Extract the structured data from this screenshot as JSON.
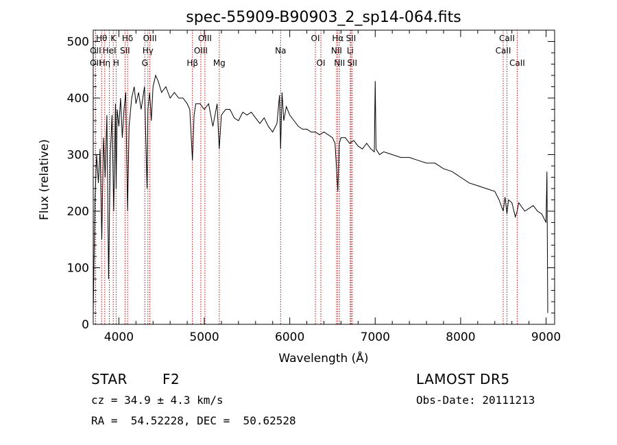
{
  "chart_data": {
    "type": "line",
    "title": "spec-55909-B90903_2_sp14-064.fits",
    "xlabel": "Wavelength (Å)",
    "ylabel": "Flux (relative)",
    "xlim": [
      3700,
      9100
    ],
    "ylim": [
      0,
      520
    ],
    "xticks": [
      4000,
      5000,
      6000,
      7000,
      8000,
      9000
    ],
    "yticks": [
      0,
      100,
      200,
      300,
      400,
      500
    ],
    "series": [
      {
        "color": "#000000",
        "x": [
          3700,
          3720,
          3740,
          3760,
          3780,
          3800,
          3820,
          3840,
          3860,
          3880,
          3900,
          3920,
          3940,
          3960,
          3968,
          3980,
          4000,
          4020,
          4040,
          4060,
          4080,
          4102,
          4120,
          4150,
          4180,
          4200,
          4230,
          4260,
          4300,
          4330,
          4340,
          4360,
          4380,
          4400,
          4430,
          4460,
          4500,
          4550,
          4600,
          4650,
          4700,
          4750,
          4800,
          4830,
          4861,
          4880,
          4900,
          4950,
          5000,
          5050,
          5100,
          5150,
          5175,
          5200,
          5250,
          5300,
          5350,
          5400,
          5450,
          5500,
          5550,
          5600,
          5650,
          5700,
          5750,
          5800,
          5850,
          5880,
          5893,
          5910,
          5930,
          5960,
          6000,
          6050,
          6100,
          6150,
          6200,
          6250,
          6300,
          6350,
          6400,
          6450,
          6500,
          6530,
          6563,
          6580,
          6600,
          6650,
          6700,
          6750,
          6800,
          6850,
          6900,
          6950,
          6990,
          7000,
          7010,
          7050,
          7100,
          7200,
          7300,
          7400,
          7500,
          7600,
          7700,
          7800,
          7900,
          8000,
          8100,
          8200,
          8300,
          8400,
          8450,
          8498,
          8520,
          8542,
          8560,
          8600,
          8640,
          8662,
          8680,
          8750,
          8800,
          8850,
          8900,
          8950,
          9000,
          9010,
          9020
        ],
        "y": [
          20,
          220,
          300,
          250,
          310,
          150,
          330,
          260,
          370,
          80,
          300,
          370,
          200,
          390,
          240,
          380,
          350,
          400,
          330,
          380,
          410,
          200,
          350,
          400,
          420,
          390,
          410,
          380,
          420,
          240,
          380,
          410,
          360,
          420,
          440,
          430,
          410,
          420,
          400,
          410,
          400,
          400,
          390,
          380,
          290,
          370,
          390,
          390,
          380,
          390,
          350,
          390,
          310,
          370,
          380,
          380,
          365,
          360,
          375,
          370,
          375,
          365,
          355,
          365,
          350,
          340,
          355,
          405,
          310,
          410,
          360,
          385,
          370,
          360,
          350,
          345,
          345,
          340,
          340,
          335,
          340,
          335,
          330,
          320,
          235,
          320,
          330,
          330,
          320,
          325,
          315,
          310,
          320,
          310,
          305,
          430,
          310,
          300,
          305,
          300,
          295,
          295,
          290,
          285,
          285,
          275,
          270,
          260,
          250,
          245,
          240,
          235,
          220,
          200,
          225,
          195,
          220,
          215,
          190,
          200,
          215,
          200,
          205,
          210,
          200,
          195,
          180,
          270,
          20
        ]
      }
    ],
    "spectral_lines": [
      {
        "label": "Hθ",
        "x": 3798,
        "row": 0
      },
      {
        "label": "K",
        "x": 3934,
        "row": 0
      },
      {
        "label": "Hδ",
        "x": 4102,
        "row": 0
      },
      {
        "label": "OIII",
        "x": 4363,
        "row": 0
      },
      {
        "label": "OIII",
        "x": 5007,
        "row": 0
      },
      {
        "label": "OI",
        "x": 6300,
        "row": 0
      },
      {
        "label": "Hα",
        "x": 6563,
        "row": 0
      },
      {
        "label": "SII",
        "x": 6717,
        "row": 0
      },
      {
        "label": "CaII",
        "x": 8542,
        "row": 0
      },
      {
        "label": "OII",
        "x": 3727,
        "row": 1
      },
      {
        "label": "HeI",
        "x": 3889,
        "row": 1
      },
      {
        "label": "SII",
        "x": 4072,
        "row": 1
      },
      {
        "label": "Hγ",
        "x": 4340,
        "row": 1
      },
      {
        "label": "OIII",
        "x": 4959,
        "row": 1
      },
      {
        "label": "Na",
        "x": 5893,
        "row": 1
      },
      {
        "label": "NII",
        "x": 6548,
        "row": 1
      },
      {
        "label": "Li",
        "x": 6708,
        "row": 1
      },
      {
        "label": "CaII",
        "x": 8498,
        "row": 1
      },
      {
        "label": "OII",
        "x": 3727,
        "row": 2
      },
      {
        "label": "Hη",
        "x": 3835,
        "row": 2
      },
      {
        "label": "H",
        "x": 3968,
        "row": 2
      },
      {
        "label": "G",
        "x": 4304,
        "row": 2
      },
      {
        "label": "Hβ",
        "x": 4861,
        "row": 2
      },
      {
        "label": "Mg",
        "x": 5175,
        "row": 2
      },
      {
        "label": "OI",
        "x": 6364,
        "row": 2
      },
      {
        "label": "NII",
        "x": 6583,
        "row": 2
      },
      {
        "label": "SII",
        "x": 6731,
        "row": 2
      },
      {
        "label": "CaII",
        "x": 8662,
        "row": 2
      }
    ],
    "line_marker_color": "#cc0000"
  },
  "info": {
    "object_class": "STAR",
    "subclass": "F2",
    "survey": "LAMOST DR5",
    "cz": "cz = 34.9 ± 4.3 km/s",
    "obs_date": "Obs-Date: 20111213",
    "coords": "RA =  54.52228, DEC =  50.62528"
  }
}
